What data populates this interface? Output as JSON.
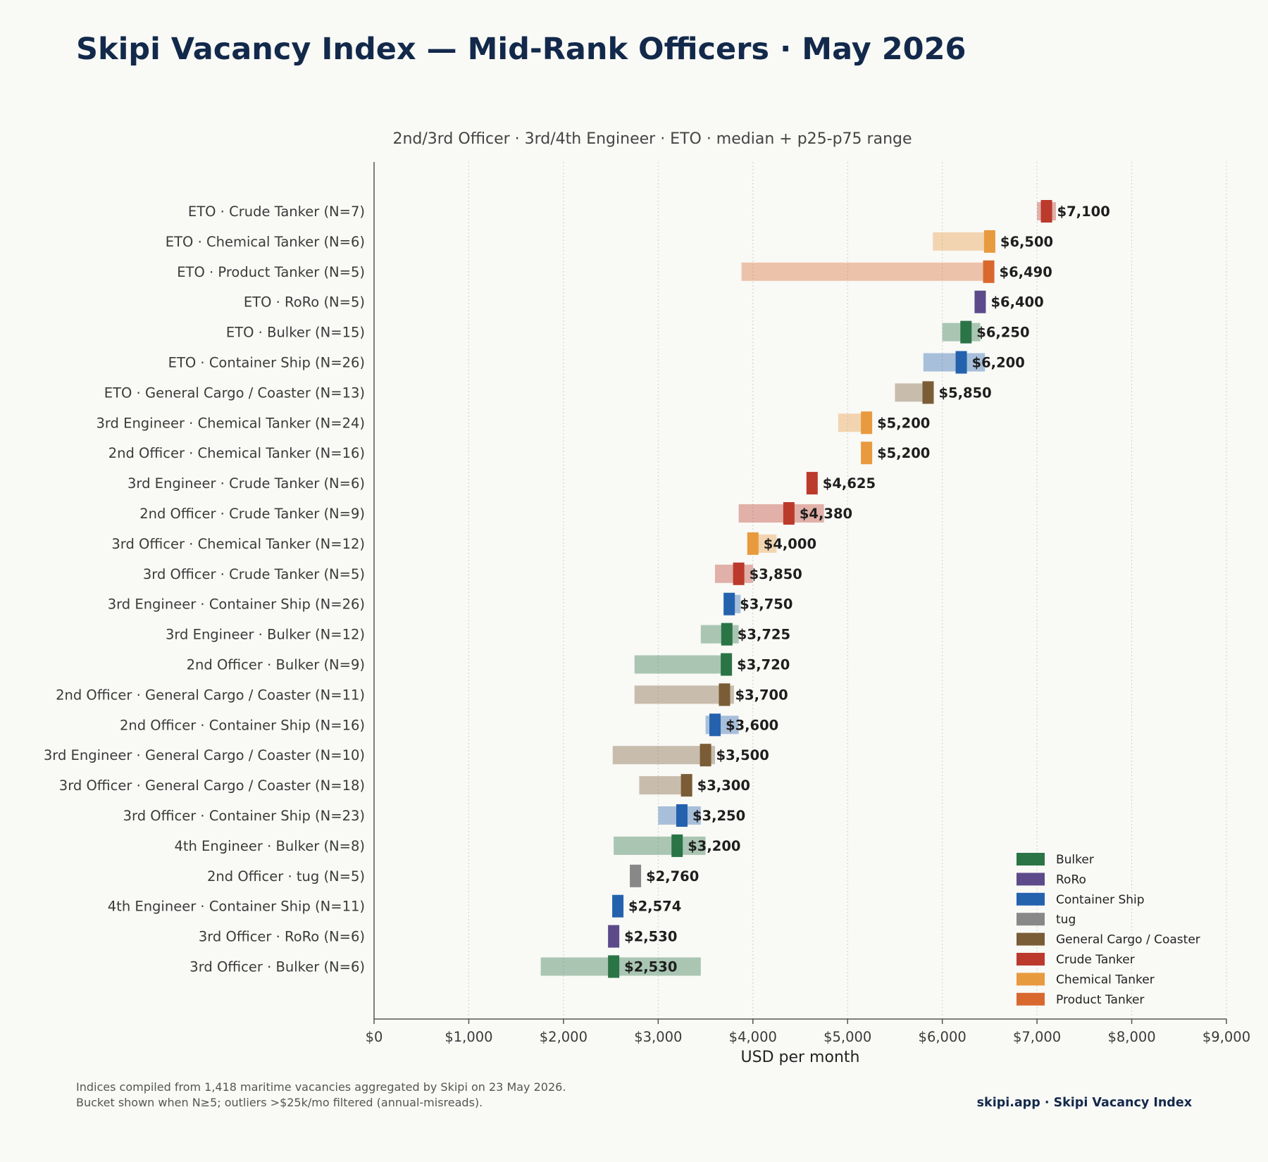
{
  "title": "Skipi Vacancy Index — Mid-Rank Officers · May 2026",
  "subtitle": "2nd/3rd Officer · 3rd/4th Engineer · ETO  ·  median + p25-p75 range",
  "footnote": {
    "line1": "Indices compiled from 1,418 maritime vacancies aggregated by Skipi on 23 May 2026.",
    "line2": "Bucket shown when N≥5; outliers >$25k/mo filtered (annual-misreads)."
  },
  "brand": "skipi.app · Skipi Vacancy Index",
  "chart_data": {
    "type": "bar",
    "orientation": "horizontal",
    "xlabel": "USD per month",
    "xlim": [
      0,
      9000
    ],
    "xticks": [
      0,
      1000,
      2000,
      3000,
      4000,
      5000,
      6000,
      7000,
      8000,
      9000
    ],
    "xtick_labels": [
      "$0",
      "$1,000",
      "$2,000",
      "$3,000",
      "$4,000",
      "$5,000",
      "$6,000",
      "$7,000",
      "$8,000",
      "$9,000"
    ],
    "grid": "vertical dotted",
    "legend_position": "bottom-right",
    "legend": [
      {
        "name": "Bulker",
        "color": "#2b7446"
      },
      {
        "name": "RoRo",
        "color": "#5c4a8a"
      },
      {
        "name": "Container Ship",
        "color": "#2462ae"
      },
      {
        "name": "tug",
        "color": "#888888"
      },
      {
        "name": "General Cargo / Coaster",
        "color": "#7a5c36"
      },
      {
        "name": "Crude Tanker",
        "color": "#bb3a2b"
      },
      {
        "name": "Chemical Tanker",
        "color": "#e89a3e"
      },
      {
        "name": "Product Tanker",
        "color": "#d9682f"
      }
    ],
    "rows": [
      {
        "label": "ETO · Crude Tanker  (N=7)",
        "type": "Crude Tanker",
        "p25": 7000,
        "median": 7100,
        "p75": 7200,
        "value_label": "$7,100"
      },
      {
        "label": "ETO · Chemical Tanker  (N=6)",
        "type": "Chemical Tanker",
        "p25": 5900,
        "median": 6500,
        "p75": 6500,
        "value_label": "$6,500"
      },
      {
        "label": "ETO · Product Tanker  (N=5)",
        "type": "Product Tanker",
        "p25": 3880,
        "median": 6490,
        "p75": 6490,
        "value_label": "$6,490"
      },
      {
        "label": "ETO · RoRo  (N=5)",
        "type": "RoRo",
        "p25": 6400,
        "median": 6400,
        "p75": 6400,
        "value_label": "$6,400"
      },
      {
        "label": "ETO · Bulker  (N=15)",
        "type": "Bulker",
        "p25": 6000,
        "median": 6250,
        "p75": 6400,
        "value_label": "$6,250"
      },
      {
        "label": "ETO · Container Ship  (N=26)",
        "type": "Container Ship",
        "p25": 5800,
        "median": 6200,
        "p75": 6450,
        "value_label": "$6,200"
      },
      {
        "label": "ETO · General Cargo / Coaster  (N=13)",
        "type": "General Cargo / Coaster",
        "p25": 5500,
        "median": 5850,
        "p75": 5850,
        "value_label": "$5,850"
      },
      {
        "label": "3rd Engineer · Chemical Tanker  (N=24)",
        "type": "Chemical Tanker",
        "p25": 4900,
        "median": 5200,
        "p75": 5200,
        "value_label": "$5,200"
      },
      {
        "label": "2nd Officer · Chemical Tanker  (N=16)",
        "type": "Chemical Tanker",
        "p25": 5200,
        "median": 5200,
        "p75": 5200,
        "value_label": "$5,200"
      },
      {
        "label": "3rd Engineer · Crude Tanker  (N=6)",
        "type": "Crude Tanker",
        "p25": 4625,
        "median": 4625,
        "p75": 4625,
        "value_label": "$4,625"
      },
      {
        "label": "2nd Officer · Crude Tanker  (N=9)",
        "type": "Crude Tanker",
        "p25": 3850,
        "median": 4380,
        "p75": 4750,
        "value_label": "$4,380"
      },
      {
        "label": "3rd Officer · Chemical Tanker  (N=12)",
        "type": "Chemical Tanker",
        "p25": 4000,
        "median": 4000,
        "p75": 4250,
        "value_label": "$4,000"
      },
      {
        "label": "3rd Officer · Crude Tanker  (N=5)",
        "type": "Crude Tanker",
        "p25": 3600,
        "median": 3850,
        "p75": 4000,
        "value_label": "$3,850"
      },
      {
        "label": "3rd Engineer · Container Ship  (N=26)",
        "type": "Container Ship",
        "p25": 3750,
        "median": 3750,
        "p75": 3870,
        "value_label": "$3,750"
      },
      {
        "label": "3rd Engineer · Bulker  (N=12)",
        "type": "Bulker",
        "p25": 3450,
        "median": 3725,
        "p75": 3850,
        "value_label": "$3,725"
      },
      {
        "label": "2nd Officer · Bulker  (N=9)",
        "type": "Bulker",
        "p25": 2750,
        "median": 3720,
        "p75": 3720,
        "value_label": "$3,720"
      },
      {
        "label": "2nd Officer · General Cargo / Coaster  (N=11)",
        "type": "General Cargo / Coaster",
        "p25": 2750,
        "median": 3700,
        "p75": 3800,
        "value_label": "$3,700"
      },
      {
        "label": "2nd Officer · Container Ship  (N=16)",
        "type": "Container Ship",
        "p25": 3500,
        "median": 3600,
        "p75": 3850,
        "value_label": "$3,600"
      },
      {
        "label": "3rd Engineer · General Cargo / Coaster  (N=10)",
        "type": "General Cargo / Coaster",
        "p25": 2520,
        "median": 3500,
        "p75": 3600,
        "value_label": "$3,500"
      },
      {
        "label": "3rd Officer · General Cargo / Coaster  (N=18)",
        "type": "General Cargo / Coaster",
        "p25": 2800,
        "median": 3300,
        "p75": 3300,
        "value_label": "$3,300"
      },
      {
        "label": "3rd Officer · Container Ship  (N=23)",
        "type": "Container Ship",
        "p25": 3000,
        "median": 3250,
        "p75": 3450,
        "value_label": "$3,250"
      },
      {
        "label": "4th Engineer · Bulker  (N=8)",
        "type": "Bulker",
        "p25": 2530,
        "median": 3200,
        "p75": 3500,
        "value_label": "$3,200"
      },
      {
        "label": "2nd Officer · tug  (N=5)",
        "type": "tug",
        "p25": 2760,
        "median": 2760,
        "p75": 2760,
        "value_label": "$2,760"
      },
      {
        "label": "4th Engineer · Container Ship  (N=11)",
        "type": "Container Ship",
        "p25": 2574,
        "median": 2574,
        "p75": 2574,
        "value_label": "$2,574"
      },
      {
        "label": "3rd Officer · RoRo  (N=6)",
        "type": "RoRo",
        "p25": 2530,
        "median": 2530,
        "p75": 2530,
        "value_label": "$2,530"
      },
      {
        "label": "3rd Officer · Bulker  (N=6)",
        "type": "Bulker",
        "p25": 1760,
        "median": 2530,
        "p75": 3450,
        "value_label": "$2,530"
      }
    ]
  }
}
